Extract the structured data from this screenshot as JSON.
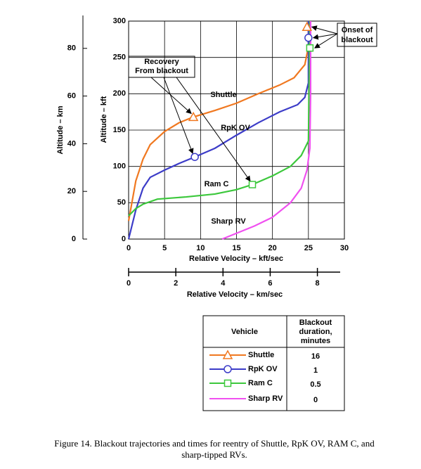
{
  "chart_data": {
    "type": "line",
    "xlabel": "Relative Velocity – kft/sec",
    "ylabel": "Altitude – kft",
    "x2label": "Relative Velocity – km/sec",
    "y2label": "Altitude – km",
    "xlim": [
      0,
      30
    ],
    "xticks": [
      0,
      5,
      10,
      15,
      20,
      25,
      30
    ],
    "ylim": [
      0,
      300
    ],
    "yticks": [
      0,
      50,
      100,
      150,
      200,
      250,
      300
    ],
    "x2lim": [
      0,
      9.144
    ],
    "x2ticks": [
      0,
      2,
      4,
      6,
      8
    ],
    "y2lim": [
      0,
      91.44
    ],
    "y2ticks": [
      0,
      20,
      40,
      60,
      80
    ],
    "grid": true,
    "series": [
      {
        "name": "Shuttle",
        "color": "#f07820",
        "marker": "triangle",
        "x": [
          0,
          1,
          2,
          3,
          5,
          7,
          9,
          12,
          15,
          18,
          21,
          23,
          24.5,
          25,
          25
        ],
        "values": [
          25,
          80,
          110,
          130,
          148,
          160,
          168,
          177,
          187,
          200,
          212,
          222,
          240,
          265,
          300
        ],
        "recovery_point": {
          "x": 9,
          "y": 168
        },
        "onset_point": {
          "x": 24.8,
          "y": 292
        },
        "blackout_minutes": 16
      },
      {
        "name": "RpK OV",
        "color": "#3c3cc8",
        "marker": "circle",
        "x": [
          0,
          1,
          2,
          3,
          5,
          7,
          9.2,
          12,
          15,
          18,
          21,
          23.5,
          24.5,
          25,
          25
        ],
        "values": [
          0,
          40,
          70,
          85,
          95,
          104,
          113,
          125,
          143,
          160,
          175,
          185,
          195,
          215,
          300
        ],
        "recovery_point": {
          "x": 9.2,
          "y": 113
        },
        "onset_point": {
          "x": 25,
          "y": 277
        },
        "blackout_minutes": 1
      },
      {
        "name": "Ram C",
        "color": "#3cc83c",
        "marker": "square",
        "x": [
          0,
          1,
          2,
          4,
          8,
          12,
          15,
          17.2,
          20,
          22.5,
          24,
          25,
          25.2
        ],
        "values": [
          32,
          42,
          48,
          55,
          58,
          62,
          68,
          75,
          87,
          100,
          115,
          135,
          300
        ],
        "recovery_point": {
          "x": 17.2,
          "y": 75
        },
        "onset_point": {
          "x": 25.2,
          "y": 263
        },
        "blackout_minutes": 0.5
      },
      {
        "name": "Sharp RV",
        "color": "#f050f0",
        "x": [
          13,
          15,
          17.5,
          20,
          22.5,
          24,
          24.8,
          25.2,
          25.3,
          25.3
        ],
        "values": [
          0,
          8,
          18,
          30,
          50,
          70,
          95,
          125,
          200,
          300
        ],
        "blackout_minutes": 0
      }
    ],
    "annotations": {
      "recovery": [
        "Recovery",
        "From blackout"
      ],
      "onset": [
        "Onset of",
        "blackout"
      ]
    },
    "legend_header": {
      "vehicle": "Vehicle",
      "duration": [
        "Blackout",
        "duration,",
        "minutes"
      ]
    },
    "caption": [
      "Figure 14.  Blackout trajectories and times for reentry of Shuttle, RpK OV, RAM C, and",
      "sharp-tipped RVs."
    ]
  }
}
